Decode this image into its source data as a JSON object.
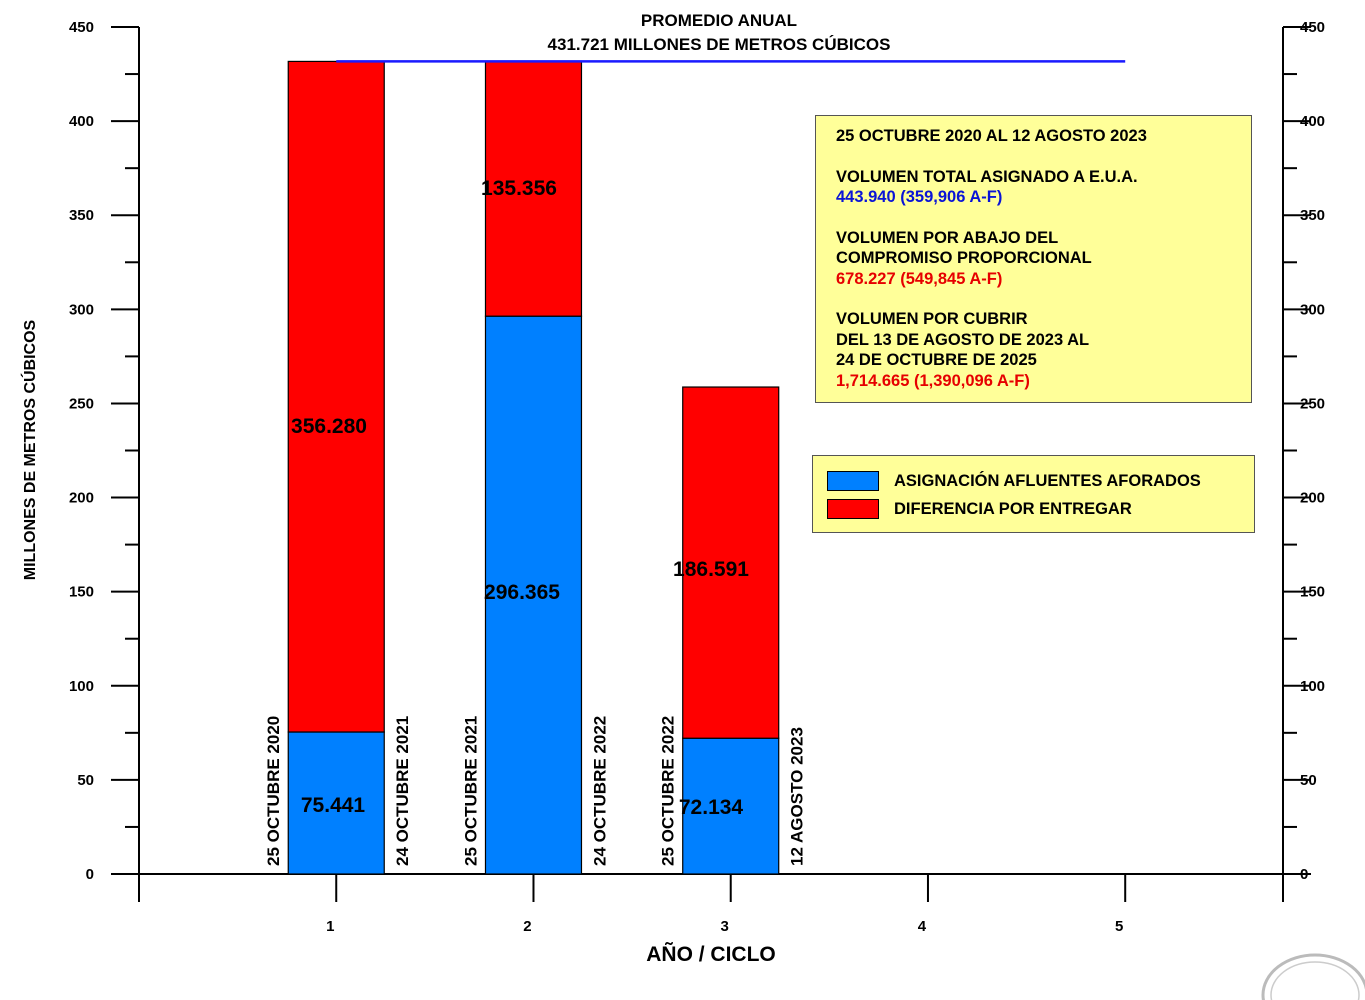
{
  "chart_data": {
    "type": "bar",
    "stacked": true,
    "header": {
      "line1": "PROMEDIO ANUAL",
      "line2": "431.721 MILLONES DE METROS CÚBICOS"
    },
    "average_line_value": 431.721,
    "average_line_color": "#1a1aff",
    "xlabel": "AÑO / CICLO",
    "ylabel": "MILLONES DE METROS CÚBICOS",
    "x_ticks": [
      "1",
      "2",
      "3",
      "4",
      "5"
    ],
    "x_range": [
      0,
      5.8
    ],
    "ylim": [
      0,
      450
    ],
    "y_ticks": [
      "0",
      "50",
      "100",
      "150",
      "200",
      "250",
      "300",
      "350",
      "400",
      "450"
    ],
    "y_minor_step": 25,
    "categories": [
      "1",
      "2",
      "3"
    ],
    "series": [
      {
        "name": "ASIGNACIÓN AFLUENTES AFORADOS",
        "color": "#0080ff",
        "values": [
          75.441,
          296.365,
          72.134
        ],
        "labels": [
          "75.441",
          "296.365",
          "72.134"
        ]
      },
      {
        "name": "DIFERENCIA POR ENTREGAR",
        "color": "#ff0000",
        "values": [
          356.28,
          135.356,
          186.591
        ],
        "labels": [
          "356.280",
          "135.356",
          "186.591"
        ]
      }
    ],
    "bar_dates": [
      {
        "start": "25 OCTUBRE 2020",
        "end": "24 OCTUBRE 2021"
      },
      {
        "start": "25 OCTUBRE 2021",
        "end": "24 OCTUBRE 2022"
      },
      {
        "start": "25 OCTUBRE 2022",
        "end": "12 AGOSTO 2023"
      }
    ],
    "grid": false,
    "legend_position": "right"
  },
  "info_box": {
    "period": "25 OCTUBRE 2020 AL 12 AGOSTO 2023",
    "total_title": "VOLUMEN TOTAL ASIGNADO A E.U.A.",
    "total_value": "443.940 (359,906 A-F)",
    "below_title_1": "VOLUMEN POR ABAJO DEL",
    "below_title_2": "COMPROMISO PROPORCIONAL",
    "below_value": "678.227 (549,845 A-F)",
    "cover_title_1": "VOLUMEN POR CUBRIR",
    "cover_title_2": "DEL 13 DE AGOSTO DE 2023 AL",
    "cover_title_3": "24 DE OCTUBRE DE 2025",
    "cover_value": "1,714.665 (1,390,096 A-F)"
  }
}
